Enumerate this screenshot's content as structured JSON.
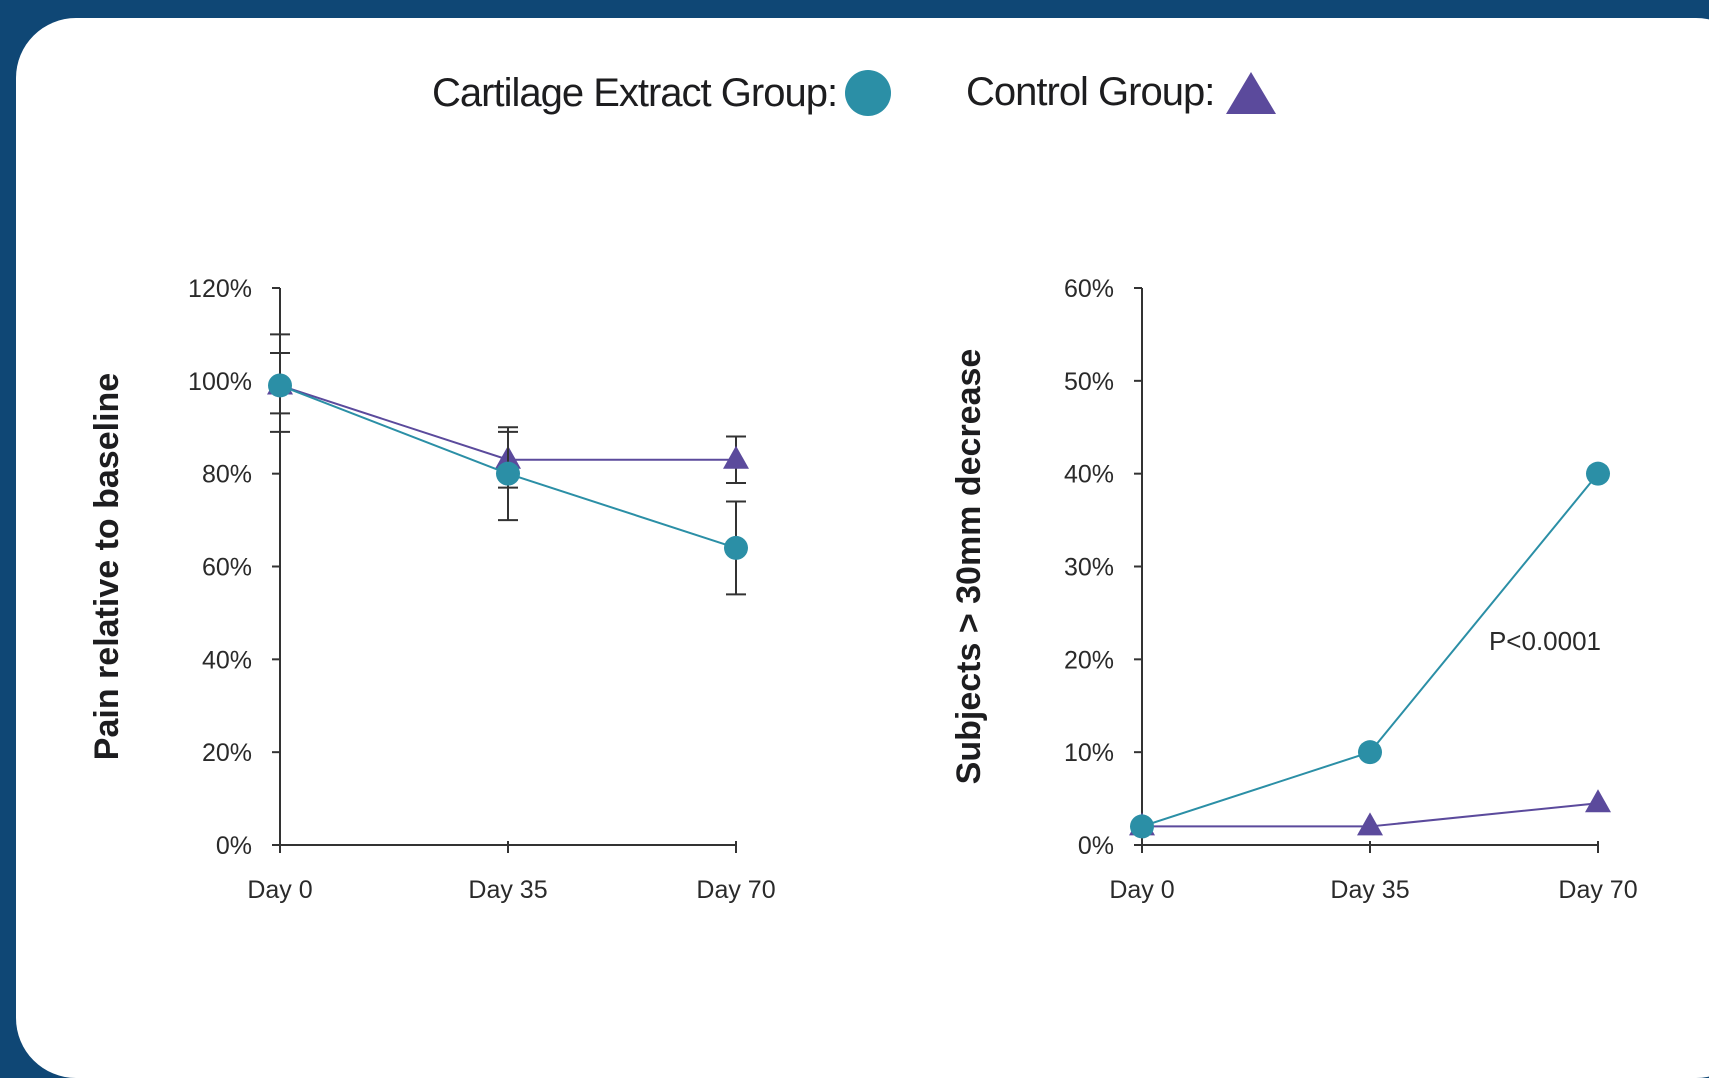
{
  "colors": {
    "background": "#0f4775",
    "card": "#ffffff",
    "cartilage": "#2b8fa6",
    "control": "#5b4a9c",
    "axis": "#333333"
  },
  "legend": {
    "cartilage_label": "Cartilage Extract Group:",
    "control_label": "Control Group:"
  },
  "chart_data": [
    {
      "type": "line",
      "categories": [
        "Day 0",
        "Day 35",
        "Day 70"
      ],
      "ylabel": "Pain relative to baseline",
      "xlabel": "",
      "ylim": [
        0,
        120
      ],
      "yticks": [
        "0%",
        "20%",
        "40%",
        "60%",
        "80%",
        "100%",
        "120%"
      ],
      "grid": false,
      "series": [
        {
          "name": "Cartilage Extract Group",
          "marker": "circle",
          "values": [
            99,
            80,
            64
          ],
          "err_low": [
            89,
            70,
            54
          ],
          "err_high": [
            106,
            89,
            74
          ]
        },
        {
          "name": "Control Group",
          "marker": "triangle",
          "values": [
            99,
            83,
            83
          ],
          "err_low": [
            93,
            77,
            78
          ],
          "err_high": [
            110,
            90,
            88
          ]
        }
      ]
    },
    {
      "type": "line",
      "categories": [
        "Day 0",
        "Day 35",
        "Day 70"
      ],
      "ylabel": "Subjects > 30mm decrease",
      "xlabel": "",
      "ylim": [
        0,
        60
      ],
      "yticks": [
        "0%",
        "10%",
        "20%",
        "30%",
        "40%",
        "50%",
        "60%"
      ],
      "grid": false,
      "annotation": "P<0.0001",
      "series": [
        {
          "name": "Cartilage Extract Group",
          "marker": "circle",
          "values": [
            2,
            10,
            40
          ]
        },
        {
          "name": "Control Group",
          "marker": "triangle",
          "values": [
            2,
            2,
            4.5
          ]
        }
      ]
    }
  ]
}
